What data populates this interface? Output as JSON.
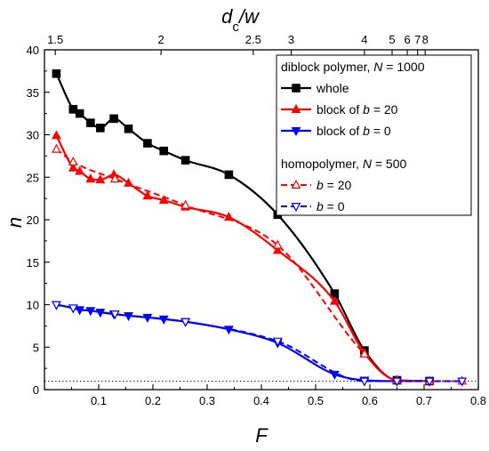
{
  "chart_data": {
    "type": "line",
    "xlabel": "F",
    "ylabel": "n",
    "top_axis_label": "dc/w",
    "xlim": [
      0,
      0.8
    ],
    "ylim": [
      0,
      40
    ],
    "xticks": [
      "0.1",
      "0.2",
      "0.3",
      "0.4",
      "0.5",
      "0.6",
      "0.7",
      "0.8"
    ],
    "yticks": [
      "0",
      "5",
      "10",
      "15",
      "20",
      "25",
      "30",
      "35",
      "40"
    ],
    "top_ticks": [
      {
        "label": "1.5",
        "F": 0.02
      },
      {
        "label": "2",
        "F": 0.215
      },
      {
        "label": "2.5",
        "F": 0.385
      },
      {
        "label": "3",
        "F": 0.455
      },
      {
        "label": "4",
        "F": 0.59
      },
      {
        "label": "5",
        "F": 0.641
      },
      {
        "label": "6",
        "F": 0.669
      },
      {
        "label": "7",
        "F": 0.688
      },
      {
        "label": "8",
        "F": 0.702
      }
    ],
    "grid": false,
    "reference_line_y": 1,
    "legend": {
      "position": "top-right",
      "group1_title": "diblock polymer, N = 1000",
      "group2_title": "homopolymer, N = 500"
    },
    "series": [
      {
        "name": "whole",
        "color": "#000000",
        "marker": "square",
        "filled": true,
        "dashed": false,
        "x": [
          0.022,
          0.053,
          0.065,
          0.085,
          0.103,
          0.128,
          0.155,
          0.19,
          0.22,
          0.26,
          0.34,
          0.43,
          0.535,
          0.59,
          0.65,
          0.71
        ],
        "y": [
          37.2,
          33.0,
          32.5,
          31.4,
          30.8,
          31.9,
          30.7,
          29.0,
          28.1,
          27.0,
          25.3,
          20.6,
          11.3,
          4.6,
          1.1,
          1.0
        ]
      },
      {
        "name": "block of b = 20",
        "color": "#ff0000",
        "marker": "triangle-up",
        "filled": true,
        "dashed": false,
        "x": [
          0.022,
          0.053,
          0.065,
          0.085,
          0.103,
          0.128,
          0.155,
          0.19,
          0.22,
          0.26,
          0.34,
          0.43,
          0.535,
          0.59,
          0.65,
          0.71
        ],
        "y": [
          29.9,
          26.1,
          25.7,
          24.8,
          24.7,
          25.3,
          24.3,
          22.8,
          22.3,
          21.5,
          20.3,
          16.4,
          10.4,
          4.3,
          1.1,
          1.0
        ]
      },
      {
        "name": "block of b = 0",
        "color": "#0000ff",
        "marker": "triangle-down",
        "filled": true,
        "dashed": false,
        "x": [
          0.022,
          0.053,
          0.065,
          0.085,
          0.103,
          0.128,
          0.155,
          0.19,
          0.22,
          0.26,
          0.34,
          0.43,
          0.535,
          0.59,
          0.65,
          0.71
        ],
        "y": [
          10.0,
          9.6,
          9.4,
          9.3,
          9.1,
          8.9,
          8.7,
          8.5,
          8.3,
          8.0,
          7.1,
          5.5,
          1.8,
          1.1,
          1.0,
          1.0
        ]
      },
      {
        "name": "b = 20",
        "color": "#ff0000",
        "marker": "triangle-up",
        "filled": false,
        "dashed": true,
        "x": [
          0.022,
          0.053,
          0.13,
          0.26,
          0.43,
          0.59,
          0.65,
          0.71,
          0.77
        ],
        "y": [
          28.3,
          26.8,
          24.8,
          21.7,
          17.0,
          4.2,
          1.1,
          1.0,
          1.0
        ]
      },
      {
        "name": "b = 0",
        "color": "#0000ff",
        "marker": "triangle-down",
        "filled": false,
        "dashed": true,
        "x": [
          0.022,
          0.053,
          0.13,
          0.26,
          0.43,
          0.59,
          0.65,
          0.71,
          0.77
        ],
        "y": [
          10.0,
          9.6,
          8.9,
          8.0,
          5.7,
          1.0,
          1.0,
          1.0,
          1.0
        ]
      }
    ]
  }
}
